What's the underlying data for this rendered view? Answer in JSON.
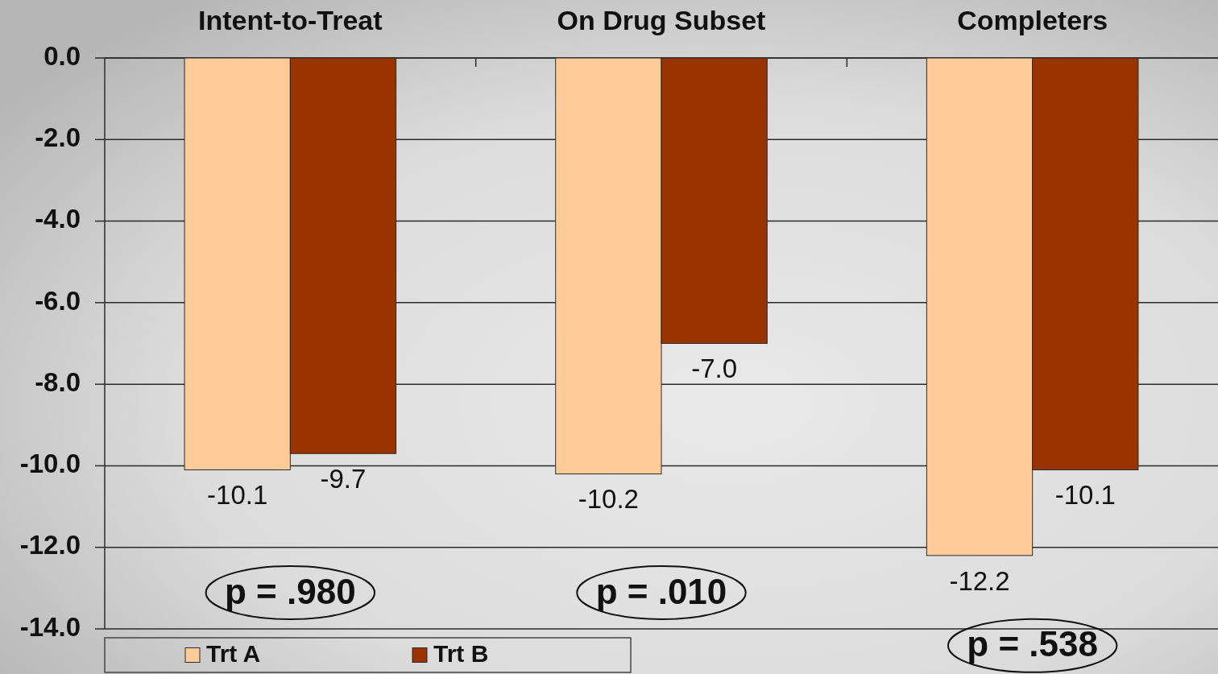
{
  "chart_data": {
    "type": "bar",
    "categories": [
      "Intent-to-Treat",
      "On Drug Subset",
      "Completers"
    ],
    "series": [
      {
        "name": "Trt A",
        "color": "#ffcc99",
        "values": [
          -10.1,
          -10.2,
          -12.2
        ],
        "value_labels": [
          "-10.1",
          "-10.2",
          "-12.2"
        ]
      },
      {
        "name": "Trt B",
        "color": "#993300",
        "values": [
          -9.7,
          -7.0,
          -10.1
        ],
        "value_labels": [
          "-9.7",
          "-7.0",
          "-10.1"
        ]
      }
    ],
    "ylim": [
      -14,
      0
    ],
    "yticks": [
      {
        "value": 0,
        "label": "0.0"
      },
      {
        "value": -2,
        "label": "-2.0"
      },
      {
        "value": -4,
        "label": "-4.0"
      },
      {
        "value": -6,
        "label": "-6.0"
      },
      {
        "value": -8,
        "label": "-8.0"
      },
      {
        "value": -10,
        "label": "-10.0"
      },
      {
        "value": -12,
        "label": "-12.0"
      },
      {
        "value": -14,
        "label": "-14.0"
      }
    ],
    "grid": "y",
    "legend": "bottom left",
    "annotations": [
      "p = .980",
      "p = .010",
      "p = .538"
    ]
  }
}
